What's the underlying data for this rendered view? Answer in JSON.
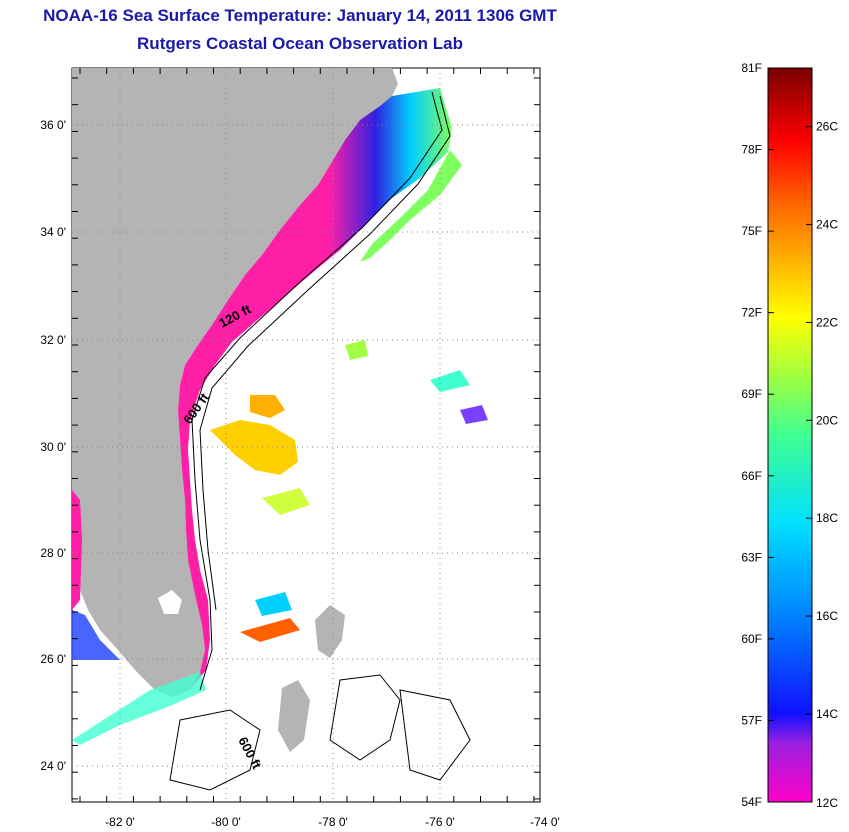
{
  "title": "NOAA-16 Sea Surface Temperature:  January 14, 2011 1306 GMT",
  "subtitle": "Rutgers Coastal Ocean Observation Lab",
  "map": {
    "lat_labels": [
      "36 0'",
      "34 0'",
      "32 0'",
      "30 0'",
      "28 0'",
      "26 0'",
      "24 0'"
    ],
    "lon_labels": [
      "-82 0'",
      "-80 0'",
      "-78 0'",
      "-76 0'",
      "-74 0'"
    ],
    "isobath_labels": [
      "120 ft",
      "600 ft",
      "600 ft"
    ],
    "colors": {
      "land": "#b4b4b4",
      "cold": "#ff1fa6",
      "grid": "#888888"
    }
  },
  "colorbar": {
    "fahrenheit_labels": [
      "81F",
      "78F",
      "75F",
      "72F",
      "69F",
      "66F",
      "63F",
      "60F",
      "57F",
      "54F"
    ],
    "celsius_labels": [
      "26C",
      "24C",
      "22C",
      "20C",
      "18C",
      "16C",
      "14C",
      "12C"
    ]
  }
}
